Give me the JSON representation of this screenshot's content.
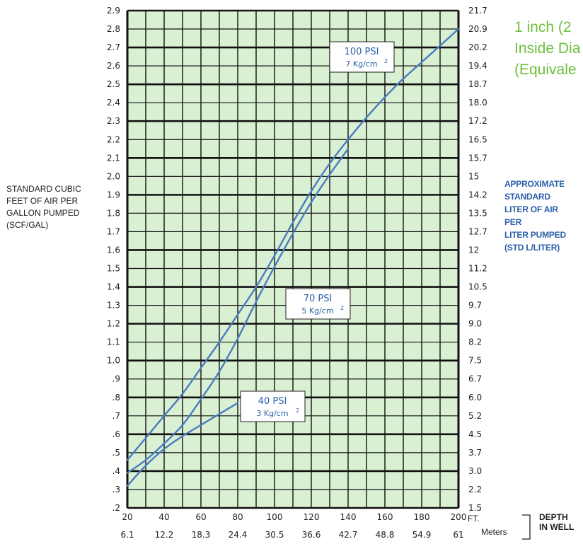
{
  "title": {
    "line1": "1   inch (2",
    "line2": "Inside Dia",
    "line3": "(Equivale"
  },
  "left_axis_label": [
    "STANDARD CUBIC",
    "FEET OF AIR PER",
    "GALLON PUMPED",
    "(SCF/GAL)"
  ],
  "right_axis_label": [
    "APPROXIMATE",
    "STANDARD",
    "LITER OF AIR",
    "PER",
    "LITER PUMPED",
    "(STD L/LITER)"
  ],
  "x_unit_ft": "FT.",
  "x_unit_m": "Meters",
  "depth_label": [
    "DEPTH",
    "IN WELL"
  ],
  "colors": {
    "plot_bg": "#daf0d3",
    "curve": "#4a7cc0",
    "label_text": "#2a5fa8",
    "title": "#6dbf3a"
  },
  "chart_data": {
    "type": "line",
    "xlim": [
      20,
      200
    ],
    "ylim": [
      0.2,
      2.9
    ],
    "x_ticks_ft": [
      "20",
      "40",
      "60",
      "80",
      "100",
      "120",
      "140",
      "160",
      "180",
      "200"
    ],
    "x_ticks_m": [
      "6.1",
      "12.2",
      "18.3",
      "24.4",
      "30.5",
      "36.6",
      "42.7",
      "48.8",
      "54.9",
      "61"
    ],
    "y_ticks_left": [
      "2.9",
      "2.8",
      "2.7",
      "2.6",
      "2.5",
      "2.4",
      "2.3",
      "2.2",
      "2.1",
      "2.0",
      "1.9",
      "1.8",
      "1.7",
      "1.6",
      "1.5",
      "1.4",
      "1.3",
      "1.2",
      "1.1",
      "1.0",
      ".9",
      ".8",
      ".7",
      ".6",
      ".5",
      ".4",
      ".3",
      ".2"
    ],
    "y_ticks_right": [
      "21.7",
      "20.9",
      "20.2",
      "19.4",
      "18.7",
      "18.0",
      "17.2",
      "16.5",
      "15.7",
      "15",
      "14.2",
      "13.5",
      "12.7",
      "12",
      "11.2",
      "10.5",
      "9.7",
      "9.0",
      "8.2",
      "7.5",
      "6.7",
      "6.0",
      "5.2",
      "4.5",
      "3.7",
      "3.0",
      "2.2",
      "1.5"
    ],
    "series": [
      {
        "name": "100 PSI",
        "sublabel": "7 Kg/cm",
        "x": [
          20,
          30,
          40,
          50,
          60,
          70,
          80,
          90,
          100,
          110,
          120,
          130,
          140,
          150,
          160,
          170,
          180,
          190,
          200
        ],
        "values": [
          0.46,
          0.58,
          0.7,
          0.82,
          0.96,
          1.1,
          1.25,
          1.4,
          1.57,
          1.75,
          1.92,
          2.07,
          2.2,
          2.32,
          2.43,
          2.53,
          2.62,
          2.71,
          2.8
        ]
      },
      {
        "name": "70 PSI",
        "sublabel": "5 Kg/cm",
        "x": [
          20,
          30,
          40,
          50,
          60,
          70,
          80,
          90,
          100,
          110,
          120,
          130,
          140
        ],
        "values": [
          0.39,
          0.46,
          0.55,
          0.65,
          0.79,
          0.94,
          1.12,
          1.32,
          1.51,
          1.69,
          1.86,
          2.01,
          2.15
        ]
      },
      {
        "name": "40 PSI",
        "sublabel": "3 Kg/cm",
        "x": [
          20,
          30,
          40,
          50,
          60,
          70,
          80
        ],
        "values": [
          0.32,
          0.43,
          0.52,
          0.59,
          0.65,
          0.71,
          0.77
        ]
      }
    ]
  }
}
